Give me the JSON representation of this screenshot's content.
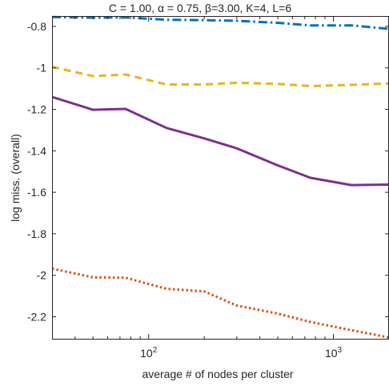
{
  "chart_data": {
    "type": "line",
    "title": "C = 1.00, α = 0.75, β=3.00, K=4, L=6",
    "xlabel": "average # of nodes per cluster",
    "ylabel": "log miss. (overall)",
    "x_scale": "log",
    "xlim": [
      30,
      2000
    ],
    "ylim": [
      -2.31,
      -0.75
    ],
    "grid": false,
    "legend": "none",
    "y_ticks": [
      {
        "value": -0.8,
        "label": "-0.8"
      },
      {
        "value": -1.0,
        "label": "-1"
      },
      {
        "value": -1.2,
        "label": "-1.2"
      },
      {
        "value": -1.4,
        "label": "-1.4"
      },
      {
        "value": -1.6,
        "label": "-1.6"
      },
      {
        "value": -1.8,
        "label": "-1.8"
      },
      {
        "value": -2.0,
        "label": "-2"
      },
      {
        "value": -2.2,
        "label": "-2.2"
      }
    ],
    "x_ticks": [
      {
        "value": 100,
        "base": "10",
        "exp": "2"
      },
      {
        "value": 1000,
        "base": "10",
        "exp": "3"
      }
    ],
    "series": [
      {
        "color": "#0072BD",
        "style": "dashdot",
        "x": [
          30,
          50,
          75,
          125,
          200,
          300,
          500,
          750,
          1250,
          2000
        ],
        "y": [
          -0.755,
          -0.758,
          -0.757,
          -0.768,
          -0.77,
          -0.773,
          -0.783,
          -0.795,
          -0.795,
          -0.812
        ]
      },
      {
        "color": "#EDB120",
        "style": "dashed",
        "x": [
          30,
          50,
          75,
          125,
          200,
          300,
          500,
          750,
          1250,
          2000
        ],
        "y": [
          -0.995,
          -1.04,
          -1.032,
          -1.08,
          -1.08,
          -1.072,
          -1.077,
          -1.088,
          -1.082,
          -1.075
        ]
      },
      {
        "color": "#7E2F8E",
        "style": "solid",
        "x": [
          30,
          50,
          75,
          125,
          200,
          300,
          500,
          750,
          1250,
          2000
        ],
        "y": [
          -1.14,
          -1.202,
          -1.198,
          -1.29,
          -1.34,
          -1.388,
          -1.47,
          -1.53,
          -1.565,
          -1.563
        ]
      },
      {
        "color": "#D95319",
        "style": "dotted",
        "x": [
          30,
          50,
          75,
          125,
          200,
          300,
          500,
          750,
          1250,
          2000
        ],
        "y": [
          -1.968,
          -2.01,
          -2.012,
          -2.065,
          -2.078,
          -2.146,
          -2.185,
          -2.225,
          -2.265,
          -2.3
        ]
      }
    ]
  }
}
